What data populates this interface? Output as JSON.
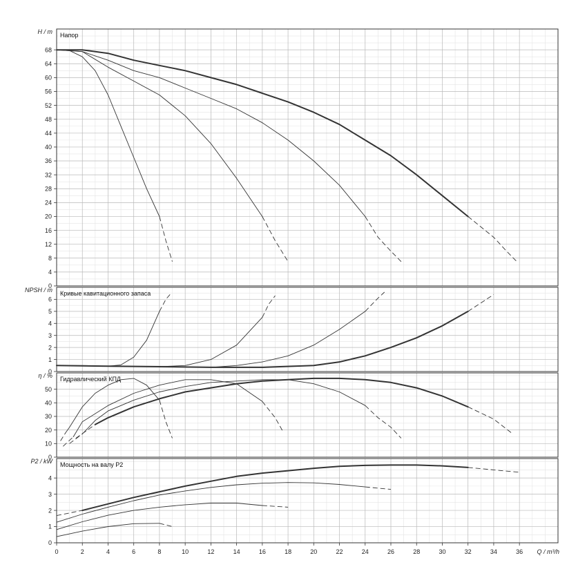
{
  "chart_data": [
    {
      "type": "line",
      "title": "Напор",
      "ylabel_symbol": "H",
      "ylabel_unit": "m",
      "ylim": [
        0,
        74
      ],
      "yticks": [
        0,
        4,
        8,
        12,
        16,
        20,
        24,
        28,
        32,
        36,
        40,
        44,
        48,
        52,
        56,
        60,
        64,
        68
      ],
      "grid": true,
      "series": [
        {
          "solid": [
            [
              0,
              68
            ],
            [
              1,
              67.8
            ],
            [
              2,
              66
            ],
            [
              3,
              62
            ],
            [
              4,
              55
            ],
            [
              5,
              46
            ],
            [
              6,
              37
            ],
            [
              7,
              28
            ],
            [
              8,
              20
            ]
          ],
          "dashed": [
            [
              8,
              20
            ],
            [
              8.5,
              13
            ],
            [
              9,
              7
            ]
          ]
        },
        {
          "solid": [
            [
              0,
              68
            ],
            [
              2,
              67.5
            ],
            [
              4,
              63
            ],
            [
              6,
              59
            ],
            [
              8,
              55
            ],
            [
              10,
              49
            ],
            [
              12,
              41
            ],
            [
              14,
              31
            ],
            [
              16,
              20
            ]
          ],
          "dashed": [
            [
              16,
              20
            ],
            [
              17,
              13
            ],
            [
              18,
              7
            ]
          ]
        },
        {
          "solid": [
            [
              0,
              68
            ],
            [
              2,
              67.5
            ],
            [
              4,
              65
            ],
            [
              6,
              62
            ],
            [
              8,
              60
            ],
            [
              10,
              57
            ],
            [
              12,
              54
            ],
            [
              14,
              51
            ],
            [
              16,
              47
            ],
            [
              18,
              42
            ],
            [
              20,
              36
            ],
            [
              22,
              29
            ],
            [
              24,
              20
            ]
          ],
          "dashed": [
            [
              24,
              20
            ],
            [
              25,
              14
            ],
            [
              26,
              10
            ],
            [
              26.8,
              7
            ]
          ]
        },
        {
          "solid": [
            [
              0,
              68
            ],
            [
              2,
              68
            ],
            [
              4,
              67
            ],
            [
              6,
              65
            ],
            [
              8,
              63.5
            ],
            [
              10,
              62
            ],
            [
              12,
              60
            ],
            [
              14,
              58
            ],
            [
              16,
              55.5
            ],
            [
              18,
              53
            ],
            [
              20,
              50
            ],
            [
              22,
              46.5
            ],
            [
              24,
              42
            ],
            [
              26,
              37.5
            ],
            [
              28,
              32
            ],
            [
              30,
              26
            ],
            [
              32,
              20
            ]
          ],
          "dashed": [
            [
              32,
              20
            ],
            [
              33,
              17
            ],
            [
              34,
              14
            ],
            [
              35,
              10
            ],
            [
              35.8,
              7
            ]
          ]
        }
      ]
    },
    {
      "type": "line",
      "title": "Кривые кавитационного запаса",
      "ylabel_symbol": "NPSH",
      "ylabel_unit": "m",
      "ylim": [
        0,
        7
      ],
      "yticks": [
        0,
        1,
        2,
        3,
        4,
        5,
        6
      ],
      "grid": true,
      "series": [
        {
          "solid": [
            [
              0,
              0.5
            ],
            [
              2,
              0.5
            ],
            [
              4,
              0.45
            ],
            [
              5,
              0.55
            ],
            [
              6,
              1.2
            ],
            [
              7,
              2.6
            ],
            [
              8,
              5
            ]
          ],
          "dashed": [
            [
              8,
              5
            ],
            [
              8.5,
              6
            ],
            [
              8.9,
              6.5
            ]
          ]
        },
        {
          "solid": [
            [
              0,
              0.5
            ],
            [
              4,
              0.45
            ],
            [
              8,
              0.4
            ],
            [
              10,
              0.5
            ],
            [
              12,
              1
            ],
            [
              14,
              2.2
            ],
            [
              16,
              4.5
            ]
          ],
          "dashed": [
            [
              16,
              4.5
            ],
            [
              16.5,
              5.6
            ],
            [
              17,
              6.3
            ]
          ]
        },
        {
          "solid": [
            [
              0,
              0.5
            ],
            [
              8,
              0.4
            ],
            [
              12,
              0.35
            ],
            [
              14,
              0.5
            ],
            [
              16,
              0.8
            ],
            [
              18,
              1.3
            ],
            [
              20,
              2.2
            ],
            [
              22,
              3.5
            ],
            [
              24,
              5
            ]
          ],
          "dashed": [
            [
              24,
              5
            ],
            [
              25,
              6.1
            ],
            [
              25.5,
              6.6
            ]
          ]
        },
        {
          "solid": [
            [
              0,
              0.5
            ],
            [
              4,
              0.45
            ],
            [
              8,
              0.4
            ],
            [
              12,
              0.35
            ],
            [
              16,
              0.35
            ],
            [
              20,
              0.5
            ],
            [
              22,
              0.8
            ],
            [
              24,
              1.3
            ],
            [
              26,
              2
            ],
            [
              28,
              2.8
            ],
            [
              30,
              3.8
            ],
            [
              32,
              5
            ]
          ],
          "dashed": [
            [
              32,
              5
            ],
            [
              33,
              5.7
            ],
            [
              34,
              6.4
            ]
          ]
        }
      ]
    },
    {
      "type": "line",
      "title": "Гидравлический КПД",
      "ylabel_symbol": "η",
      "ylabel_unit": "%",
      "ylim": [
        0,
        62
      ],
      "yticks": [
        0,
        10,
        20,
        30,
        40,
        50
      ],
      "grid": true,
      "series": [
        {
          "dashed_start": [
            [
              0.3,
              12
            ],
            [
              0.7,
              18
            ]
          ],
          "solid": [
            [
              0.7,
              18
            ],
            [
              1,
              22
            ],
            [
              2,
              37
            ],
            [
              3,
              47
            ],
            [
              4,
              53
            ],
            [
              5,
              57
            ],
            [
              6,
              58
            ],
            [
              7,
              53
            ],
            [
              8,
              42
            ]
          ],
          "dashed": [
            [
              8,
              42
            ],
            [
              8.5,
              26
            ],
            [
              9,
              14
            ]
          ]
        },
        {
          "dashed_start": [
            [
              0.5,
              8
            ],
            [
              1.3,
              15
            ]
          ],
          "solid": [
            [
              1.3,
              15
            ],
            [
              2,
              26
            ],
            [
              4,
              38
            ],
            [
              6,
              47
            ],
            [
              8,
              53
            ],
            [
              10,
              57
            ],
            [
              12,
              57
            ],
            [
              14,
              54
            ],
            [
              16,
              41
            ]
          ],
          "dashed": [
            [
              16,
              41
            ],
            [
              17,
              29
            ],
            [
              17.6,
              19
            ]
          ]
        },
        {
          "dashed_start": [
            [
              1,
              10
            ],
            [
              2,
              17
            ]
          ],
          "solid": [
            [
              2,
              17
            ],
            [
              3,
              27
            ],
            [
              4,
              34
            ],
            [
              6,
              42
            ],
            [
              8,
              48
            ],
            [
              10,
              52
            ],
            [
              12,
              55
            ],
            [
              14,
              56
            ],
            [
              16,
              57
            ],
            [
              18,
              57
            ],
            [
              20,
              54
            ],
            [
              22,
              48
            ],
            [
              24,
              38
            ]
          ],
          "dashed": [
            [
              24,
              38
            ],
            [
              25,
              29
            ],
            [
              26,
              22
            ],
            [
              26.8,
              14
            ]
          ]
        },
        {
          "dashed_start": [
            [
              1.5,
              14
            ],
            [
              3,
              24
            ]
          ],
          "solid": [
            [
              3,
              24
            ],
            [
              4,
              29
            ],
            [
              6,
              37
            ],
            [
              8,
              43
            ],
            [
              10,
              48
            ],
            [
              12,
              51
            ],
            [
              14,
              54
            ],
            [
              16,
              56
            ],
            [
              18,
              57
            ],
            [
              20,
              58
            ],
            [
              22,
              58
            ],
            [
              24,
              57
            ],
            [
              26,
              55
            ],
            [
              28,
              51
            ],
            [
              30,
              45
            ],
            [
              32,
              37
            ]
          ],
          "dashed": [
            [
              32,
              37
            ],
            [
              34,
              28
            ],
            [
              35.5,
              17
            ]
          ]
        }
      ]
    },
    {
      "type": "line",
      "title": "Мощность на валу P2",
      "ylabel_symbol": "P2",
      "ylabel_unit": "kW",
      "ylim": [
        0,
        5.2
      ],
      "yticks": [
        0,
        1,
        2,
        3,
        4
      ],
      "xlabel_symbol": "Q",
      "xlabel_unit": "m³/h",
      "xlim": [
        0,
        39
      ],
      "xticks": [
        0,
        2,
        4,
        6,
        8,
        10,
        12,
        14,
        16,
        18,
        20,
        22,
        24,
        26,
        28,
        30,
        32,
        34,
        36
      ],
      "grid": true,
      "series": [
        {
          "solid": [
            [
              0,
              0.38
            ],
            [
              2,
              0.72
            ],
            [
              4,
              1
            ],
            [
              6,
              1.18
            ],
            [
              8,
              1.2
            ]
          ],
          "dashed": [
            [
              8,
              1.2
            ],
            [
              9,
              1
            ]
          ]
        },
        {
          "solid": [
            [
              0,
              0.82
            ],
            [
              2,
              1.3
            ],
            [
              4,
              1.7
            ],
            [
              6,
              2
            ],
            [
              8,
              2.2
            ],
            [
              10,
              2.35
            ],
            [
              12,
              2.45
            ],
            [
              14,
              2.45
            ],
            [
              16,
              2.3
            ]
          ],
          "dashed": [
            [
              16,
              2.3
            ],
            [
              18,
              2.2
            ]
          ]
        },
        {
          "solid": [
            [
              0,
              1.27
            ],
            [
              2,
              1.77
            ],
            [
              4,
              2.2
            ],
            [
              6,
              2.6
            ],
            [
              8,
              2.95
            ],
            [
              10,
              3.2
            ],
            [
              12,
              3.42
            ],
            [
              14,
              3.58
            ],
            [
              16,
              3.68
            ],
            [
              18,
              3.72
            ],
            [
              20,
              3.7
            ],
            [
              22,
              3.6
            ],
            [
              24,
              3.45
            ]
          ],
          "dashed": [
            [
              24,
              3.45
            ],
            [
              26,
              3.3
            ]
          ]
        },
        {
          "dashed_start": [
            [
              0,
              1.68
            ],
            [
              2,
              2
            ]
          ],
          "solid": [
            [
              2,
              2
            ],
            [
              4,
              2.4
            ],
            [
              6,
              2.8
            ],
            [
              8,
              3.15
            ],
            [
              10,
              3.5
            ],
            [
              12,
              3.8
            ],
            [
              14,
              4.1
            ],
            [
              16,
              4.3
            ],
            [
              18,
              4.45
            ],
            [
              20,
              4.6
            ],
            [
              22,
              4.72
            ],
            [
              24,
              4.78
            ],
            [
              26,
              4.8
            ],
            [
              28,
              4.8
            ],
            [
              30,
              4.75
            ],
            [
              32,
              4.65
            ]
          ],
          "dashed": [
            [
              32,
              4.65
            ],
            [
              34,
              4.5
            ],
            [
              36,
              4.35
            ]
          ]
        }
      ]
    }
  ]
}
